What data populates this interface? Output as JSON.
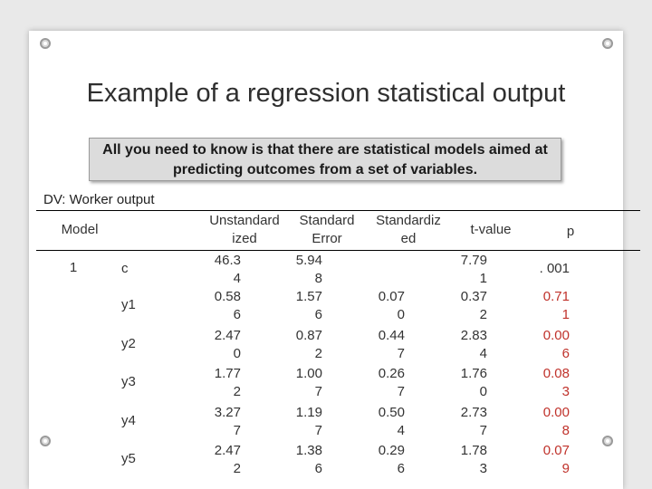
{
  "slide": {
    "title": "Example of a regression statistical output",
    "callout": "All you need to know is that there are statistical models aimed at predicting outcomes from a set of variables.",
    "dv_label": "DV: Worker output"
  },
  "table": {
    "headers": {
      "model": "Model",
      "unstd": "Unstandard\nized",
      "se": "Standard\nError",
      "std": "Standardiz\ned",
      "t": "t-value",
      "p": "p"
    },
    "model_number": "1",
    "rows": [
      {
        "var": "c",
        "unstd": "46.3\n4",
        "se": "5.94\n8",
        "std": "",
        "t": "7.79\n1",
        "p": ". 001"
      },
      {
        "var": "y1",
        "unstd": "0.58\n6",
        "se": "1.57\n6",
        "std": "0.07\n0",
        "t": "0.37\n2",
        "p": "0.71\n1"
      },
      {
        "var": "y2",
        "unstd": "2.47\n0",
        "se": "0.87\n2",
        "std": "0.44\n7",
        "t": "2.83\n4",
        "p": "0.00\n6"
      },
      {
        "var": "y3",
        "unstd": "1.77\n2",
        "se": "1.00\n7",
        "std": "0.26\n7",
        "t": "1.76\n0",
        "p": "0.08\n3"
      },
      {
        "var": "y4",
        "unstd": "3.27\n7",
        "se": "1.19\n7",
        "std": "0.50\n4",
        "t": "2.73\n7",
        "p": "0.00\n8"
      },
      {
        "var": "y5",
        "unstd": "2.47\n2",
        "se": "1.38\n6",
        "std": "0.29\n6",
        "t": "1.78\n3",
        "p": "0.07\n9"
      }
    ],
    "colors": {
      "text": "#333333",
      "significant_p": "#c0322b"
    }
  }
}
